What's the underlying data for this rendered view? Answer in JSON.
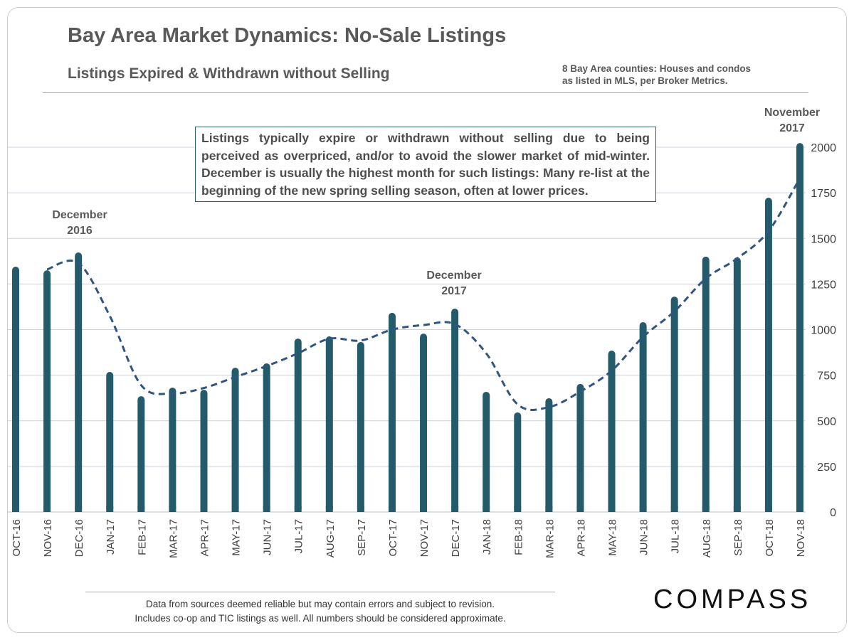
{
  "title": "Bay Area Market Dynamics: No-Sale Listings",
  "subtitle": "Listings Expired & Withdrawn without Selling",
  "source_note": [
    "8 Bay Area counties: Houses and condos",
    "as listed in MLS, per Broker Metrics."
  ],
  "annotation": "Listings typically expire or withdrawn without selling due to being perceived as overpriced, and/or to avoid the slower market of mid-winter. December is usually the highest month for such listings: Many re-list at the beginning of the new spring selling season, often at lower prices.",
  "callouts": {
    "dec2016": [
      "December",
      "2016"
    ],
    "dec2017": [
      "December",
      "2017"
    ],
    "nov2017": [
      "November",
      "2017"
    ]
  },
  "footnote": [
    "Data from sources deemed reliable but may contain errors and subject to revision.",
    "Includes co-op and TIC listings as well. All numbers should be considered approximate."
  ],
  "logo": "COMPASS",
  "colors": {
    "bar": "#235b6b",
    "trend": "#2e5583",
    "grid": "#c9d3dc"
  },
  "chart_data": {
    "type": "bar",
    "categories": [
      "OCT-16",
      "NOV-16",
      "DEC-16",
      "JAN-17",
      "FEB-17",
      "MAR-17",
      "APR-17",
      "MAY-17",
      "JUN-17",
      "JUL-17",
      "AUG-17",
      "SEP-17",
      "OCT-17",
      "NOV-17",
      "DEC-17",
      "JAN-18",
      "FEB-18",
      "MAR-18",
      "APR-18",
      "MAY-18",
      "JUN-18",
      "JUL-18",
      "AUG-18",
      "SEP-18",
      "OCT-18",
      "NOV-18"
    ],
    "values": [
      1345,
      1325,
      1423,
      768,
      635,
      682,
      670,
      791,
      815,
      951,
      963,
      932,
      1092,
      978,
      1115,
      659,
      546,
      624,
      702,
      885,
      1041,
      1181,
      1400,
      1396,
      1723,
      2023
    ],
    "trend": [
      null,
      1330,
      1365,
      1075,
      695,
      650,
      680,
      740,
      800,
      870,
      950,
      940,
      1000,
      1025,
      1030,
      870,
      590,
      575,
      660,
      775,
      960,
      1100,
      1280,
      1390,
      1540,
      1830
    ],
    "trend_style": "dashed",
    "ylim": [
      0,
      2000
    ],
    "yticks": [
      0,
      250,
      500,
      750,
      1000,
      1250,
      1500,
      1750,
      2000
    ],
    "y_axis_side": "right",
    "grid": true
  }
}
